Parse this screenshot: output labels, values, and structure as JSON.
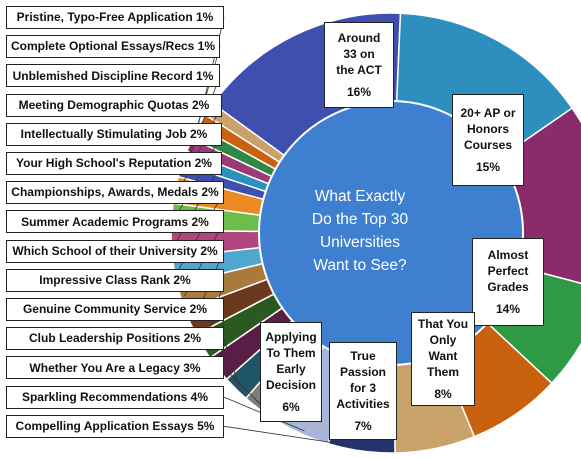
{
  "chart_data": {
    "type": "pie",
    "title": "What Exactly Do the Top 30 Universities Want to See?",
    "title_lines": [
      "What Exactly",
      "Do the Top 30",
      "Universities",
      "Want to See?"
    ],
    "unit": "%",
    "slices": [
      {
        "label": "Around 33 on the ACT",
        "label_lines": [
          "Around",
          "33 on",
          "the ACT"
        ],
        "value": 16,
        "value_text": "16%",
        "color": "#3f4fb0"
      },
      {
        "label": "20+ AP or Honors Courses",
        "label_lines": [
          "20+ AP or",
          "Honors",
          "Courses"
        ],
        "value": 15,
        "value_text": "15%",
        "color": "#2c8fbd"
      },
      {
        "label": "Almost Perfect Grades",
        "label_lines": [
          "Almost",
          "Perfect",
          "Grades"
        ],
        "value": 14,
        "value_text": "14%",
        "color": "#8a2b6b"
      },
      {
        "label": "That You Only Want Them",
        "label_lines": [
          "That You",
          "Only",
          "Want",
          "Them"
        ],
        "value": 8,
        "value_text": "8%",
        "color": "#2e9a46"
      },
      {
        "label": "True Passion for 3 Activities",
        "label_lines": [
          "True",
          "Passion",
          "for 3",
          "Activities"
        ],
        "value": 7,
        "value_text": "7%",
        "color": "#c9610f"
      },
      {
        "label": "Applying To Them Early Decision",
        "label_lines": [
          "Applying",
          "To Them",
          "Early",
          "Decision"
        ],
        "value": 6,
        "value_text": "6%",
        "color": "#c9a26a"
      },
      {
        "label": "Compelling Application Essays",
        "value": 5,
        "value_text": "5%",
        "color": "#24326e"
      },
      {
        "label": "Sparkling Recommendations",
        "value": 4,
        "value_text": "4%",
        "color": "#a8b5d6"
      },
      {
        "label": "Whether You Are a Legacy",
        "value": 3,
        "value_text": "3%",
        "color": "#7d7d7d"
      },
      {
        "label": "Club Leadership Positions",
        "value": 2,
        "value_text": "2%",
        "color": "#1f5566"
      },
      {
        "label": "Genuine Community Service",
        "value": 2,
        "value_text": "2%",
        "color": "#5a1d45"
      },
      {
        "label": "Impressive Class Rank",
        "value": 2,
        "value_text": "2%",
        "color": "#2a5a22"
      },
      {
        "label": "Which School of their University",
        "value": 2,
        "value_text": "2%",
        "color": "#6b3a1c"
      },
      {
        "label": "Summer Academic Programs",
        "value": 2,
        "value_text": "2%",
        "color": "#a97a3d"
      },
      {
        "label": "Championships, Awards, Medals",
        "value": 2,
        "value_text": "2%",
        "color": "#4fa6d0"
      },
      {
        "label": "Your High School's Reputation",
        "value": 2,
        "value_text": "2%",
        "color": "#b0457f"
      },
      {
        "label": "Intellectually Stimulating Job",
        "value": 2,
        "value_text": "2%",
        "color": "#6cbd4a"
      },
      {
        "label": "Meeting Demographic Quotas",
        "value": 2,
        "value_text": "2%",
        "color": "#ea8a23"
      },
      {
        "label": "Unblemished Discipline Record",
        "value": 1,
        "value_text": "1%",
        "color": "#3f4fb0"
      },
      {
        "label": "Complete Optional Essays/Recs",
        "value": 1,
        "value_text": "1%",
        "color": "#2c8fbd"
      },
      {
        "label": "Pristine, Typo-Free Application",
        "value": 1,
        "value_text": "1%",
        "color": "#9b3a78"
      },
      {
        "label": "",
        "value": 1,
        "value_text": "",
        "color": "#2e8a42"
      },
      {
        "label": "",
        "value": 1,
        "value_text": "",
        "color": "#c9610f"
      },
      {
        "label": "",
        "value": 1,
        "value_text": "",
        "color": "#c9a26a"
      }
    ],
    "center_color": "#3e7fd0",
    "legend": "callout boxes on left and in-slice boxes"
  }
}
